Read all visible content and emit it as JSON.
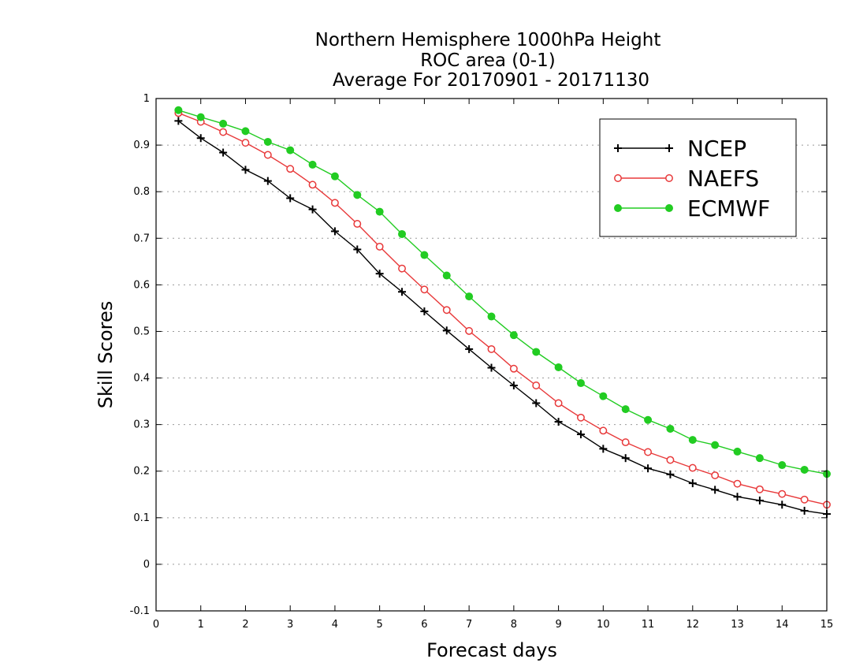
{
  "chart_data": {
    "type": "line",
    "title": [
      "Northern Hemisphere 1000hPa Height",
      "ROC area (0-1)",
      "Average For 20170901 - 20171130"
    ],
    "xlabel": "Forecast days",
    "ylabel": "Skill Scores",
    "xlim": [
      0,
      15
    ],
    "ylim": [
      -0.1,
      1
    ],
    "xticks": [
      "0",
      "1",
      "2",
      "3",
      "4",
      "5",
      "6",
      "7",
      "8",
      "9",
      "10",
      "11",
      "12",
      "13",
      "14",
      "15"
    ],
    "yticks": [
      "-0.1",
      "0",
      "0.1",
      "0.2",
      "0.3",
      "0.4",
      "0.5",
      "0.6",
      "0.7",
      "0.8",
      "0.9",
      "1"
    ],
    "grid": true,
    "legend_position": "top-right",
    "x": [
      0.5,
      1,
      1.5,
      2,
      2.5,
      3,
      3.5,
      4,
      4.5,
      5,
      5.5,
      6,
      6.5,
      7,
      7.5,
      8,
      8.5,
      9,
      9.5,
      10,
      10.5,
      11,
      11.5,
      12,
      12.5,
      13,
      13.5,
      14,
      14.5,
      15
    ],
    "series": [
      {
        "name": "NCEP",
        "color": "#000000",
        "marker": "plus",
        "values": [
          0.952,
          0.915,
          0.884,
          0.847,
          0.823,
          0.786,
          0.762,
          0.715,
          0.676,
          0.624,
          0.585,
          0.543,
          0.502,
          0.462,
          0.422,
          0.384,
          0.346,
          0.306,
          0.279,
          0.248,
          0.228,
          0.206,
          0.193,
          0.174,
          0.16,
          0.145,
          0.137,
          0.128,
          0.115,
          0.108
        ]
      },
      {
        "name": "NAEFS",
        "color": "#e8393a",
        "marker": "open-circle",
        "values": [
          0.969,
          0.95,
          0.928,
          0.905,
          0.879,
          0.849,
          0.815,
          0.776,
          0.731,
          0.682,
          0.635,
          0.59,
          0.546,
          0.501,
          0.462,
          0.42,
          0.384,
          0.346,
          0.315,
          0.287,
          0.262,
          0.241,
          0.224,
          0.207,
          0.191,
          0.173,
          0.161,
          0.151,
          0.139,
          0.128
        ]
      },
      {
        "name": "ECMWF",
        "color": "#22cc22",
        "marker": "filled-circle",
        "values": [
          0.975,
          0.96,
          0.946,
          0.93,
          0.907,
          0.889,
          0.858,
          0.833,
          0.793,
          0.757,
          0.709,
          0.664,
          0.62,
          0.575,
          0.532,
          0.492,
          0.456,
          0.423,
          0.389,
          0.361,
          0.333,
          0.31,
          0.291,
          0.267,
          0.256,
          0.242,
          0.228,
          0.213,
          0.203,
          0.194
        ]
      }
    ]
  }
}
